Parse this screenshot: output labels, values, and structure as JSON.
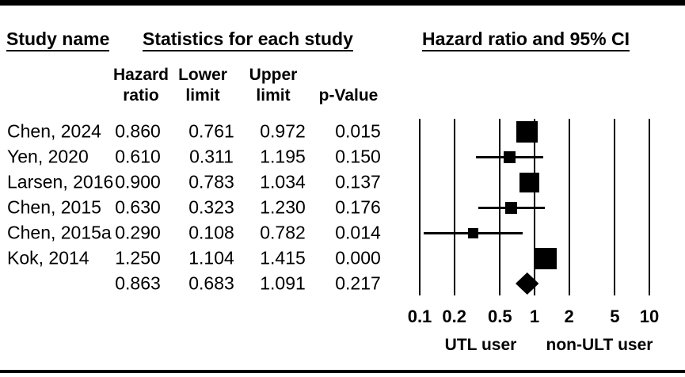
{
  "header": {
    "study_name": "Study name",
    "statistics": "Statistics for each study",
    "plot_title": "Hazard ratio and 95% CI"
  },
  "columns": {
    "hazard_line1": "Hazard",
    "hazard_line2": "ratio",
    "lower_line1": "Lower",
    "lower_line2": "limit",
    "upper_line1": "Upper",
    "upper_line2": "limit",
    "p_value": "p-Value"
  },
  "colors": {
    "foreground": "#000000",
    "background": "#ffffff"
  },
  "chart_data": {
    "type": "forest",
    "title": "Hazard ratio and 95% CI",
    "x_scale": "log10",
    "xlim": [
      0.1,
      10
    ],
    "x_ticks": [
      "0.1",
      "0.2",
      "0.5",
      "1",
      "2",
      "5",
      "10"
    ],
    "x_axis_left_label": "UTL user",
    "x_axis_right_label": "non-ULT user",
    "column_labels": [
      "Hazard ratio",
      "Lower limit",
      "Upper limit",
      "p-Value"
    ],
    "grid": true,
    "studies": [
      {
        "name": "Chen, 2024",
        "hazard_ratio": "0.860",
        "lower_limit": "0.761",
        "upper_limit": "0.972",
        "p_value": "0.015",
        "marker_size_px": 27
      },
      {
        "name": "Yen, 2020",
        "hazard_ratio": "0.610",
        "lower_limit": "0.311",
        "upper_limit": "1.195",
        "p_value": "0.150",
        "marker_size_px": 15
      },
      {
        "name": "Larsen, 2016",
        "hazard_ratio": "0.900",
        "lower_limit": "0.783",
        "upper_limit": "1.034",
        "p_value": "0.137",
        "marker_size_px": 25
      },
      {
        "name": "Chen, 2015",
        "hazard_ratio": "0.630",
        "lower_limit": "0.323",
        "upper_limit": "1.230",
        "p_value": "0.176",
        "marker_size_px": 15
      },
      {
        "name": "Chen, 2015a",
        "hazard_ratio": "0.290",
        "lower_limit": "0.108",
        "upper_limit": "0.782",
        "p_value": "0.014",
        "marker_size_px": 13
      },
      {
        "name": "Kok, 2014",
        "hazard_ratio": "1.250",
        "lower_limit": "1.104",
        "upper_limit": "1.415",
        "p_value": "0.000",
        "marker_size_px": 27
      }
    ],
    "overall": {
      "name": "",
      "hazard_ratio": "0.863",
      "lower_limit": "0.683",
      "upper_limit": "1.091",
      "p_value": "0.217",
      "marker": "diamond"
    }
  }
}
